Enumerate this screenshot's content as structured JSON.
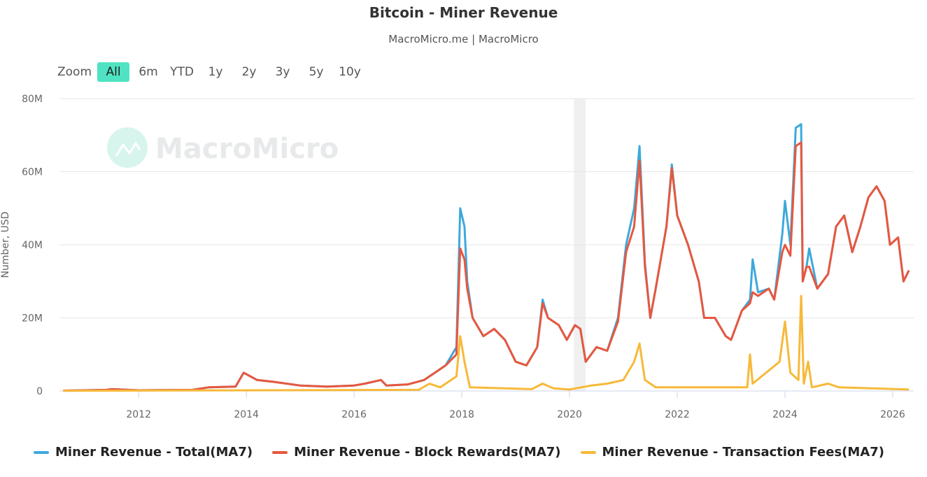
{
  "header": {
    "title": "Bitcoin - Miner Revenue",
    "subtitle": "MacroMicro.me | MacroMicro",
    "watermark": "MacroMicro"
  },
  "zoom": {
    "label": "Zoom",
    "buttons": [
      "All",
      "6m",
      "YTD",
      "1y",
      "2y",
      "3y",
      "5y",
      "10y"
    ],
    "active": "All"
  },
  "chart_data": {
    "type": "line",
    "title": "Bitcoin - Miner Revenue",
    "ylabel": "Number, USD",
    "xlabel": "",
    "xlim": [
      2010.53,
      2026.39
    ],
    "ylim": [
      0,
      80000000
    ],
    "yticks": [
      0,
      20000000,
      40000000,
      60000000,
      80000000
    ],
    "ytick_labels": [
      "0",
      "20M",
      "40M",
      "60M",
      "80M"
    ],
    "xticks": [
      2012,
      2014,
      2016,
      2018,
      2020,
      2022,
      2024,
      2026
    ],
    "xtick_labels": [
      "2012",
      "2014",
      "2016",
      "2018",
      "2020",
      "2022",
      "2024",
      "2026"
    ],
    "grid": true,
    "legend_position": "bottom",
    "shaded_band": [
      2020.08,
      2020.3
    ],
    "x": [
      2010.6,
      2011.4,
      2011.5,
      2012,
      2013,
      2013.3,
      2013.8,
      2013.95,
      2014.2,
      2014.5,
      2015,
      2015.5,
      2016,
      2016.2,
      2016.5,
      2016.6,
      2017,
      2017.3,
      2017.5,
      2017.7,
      2017.9,
      2017.97,
      2018.05,
      2018.1,
      2018.2,
      2018.4,
      2018.6,
      2018.8,
      2019,
      2019.2,
      2019.4,
      2019.5,
      2019.6,
      2019.8,
      2019.95,
      2020.1,
      2020.2,
      2020.3,
      2020.5,
      2020.7,
      2020.9,
      2021.05,
      2021.2,
      2021.3,
      2021.4,
      2021.5,
      2021.6,
      2021.8,
      2021.9,
      2022,
      2022.2,
      2022.4,
      2022.5,
      2022.7,
      2022.9,
      2023,
      2023.2,
      2023.35,
      2023.4,
      2023.5,
      2023.7,
      2023.8,
      2023.95,
      2024,
      2024.1,
      2024.2,
      2024.3,
      2024.33,
      2024.4,
      2024.45,
      2024.6,
      2024.8,
      2024.95,
      2025.1,
      2025.25,
      2025.4,
      2025.55,
      2025.7,
      2025.85,
      2025.95,
      2026.1,
      2026.2,
      2026.3
    ],
    "series": [
      {
        "name": "Miner Revenue - Total(MA7)",
        "color": "#3ca9dc",
        "unit": "M USD",
        "values": [
          0.1,
          0.3,
          0.5,
          0.2,
          0.3,
          1.0,
          1.2,
          5,
          3,
          2.5,
          1.5,
          1.2,
          1.5,
          2,
          3,
          1.5,
          1.8,
          3,
          5,
          7,
          12,
          50,
          45,
          30,
          20,
          15,
          17,
          14,
          8,
          7,
          12,
          25,
          20,
          18,
          14,
          18,
          17,
          8,
          12,
          11,
          20,
          40,
          50,
          67,
          35,
          20,
          28,
          45,
          62,
          48,
          40,
          30,
          20,
          20,
          15,
          14,
          22,
          25,
          36,
          27,
          28,
          25,
          43,
          52,
          40,
          72,
          73,
          30,
          34,
          39,
          28,
          32,
          45,
          48,
          38,
          45,
          53,
          56,
          52,
          40,
          42,
          30,
          33
        ]
      },
      {
        "name": "Miner Revenue - Block Rewards(MA7)",
        "color": "#e8573e",
        "unit": "M USD",
        "values": [
          0.1,
          0.3,
          0.5,
          0.2,
          0.3,
          1.0,
          1.2,
          5,
          3,
          2.5,
          1.5,
          1.2,
          1.5,
          2,
          3,
          1.5,
          1.8,
          3,
          5,
          7,
          10,
          39,
          36,
          28,
          20,
          15,
          17,
          14,
          8,
          7,
          12,
          24,
          20,
          18,
          14,
          18,
          17,
          8,
          12,
          11,
          19,
          38,
          45,
          63,
          34,
          20,
          28,
          45,
          61,
          48,
          40,
          30,
          20,
          20,
          15,
          14,
          22,
          24,
          27,
          26,
          28,
          25,
          38,
          40,
          37,
          67,
          68,
          30,
          34,
          34,
          28,
          32,
          45,
          48,
          38,
          45,
          53,
          56,
          52,
          40,
          42,
          30,
          33
        ]
      },
      {
        "name": "Miner Revenue - Transaction Fees(MA7)",
        "color": "#f7b93a",
        "unit": "M USD",
        "x": [
          2010.6,
          2017.2,
          2017.4,
          2017.6,
          2017.9,
          2017.97,
          2018.05,
          2018.15,
          2019.3,
          2019.5,
          2019.7,
          2020,
          2020.4,
          2020.7,
          2021.0,
          2021.2,
          2021.3,
          2021.4,
          2021.6,
          2023.3,
          2023.35,
          2023.4,
          2023.9,
          2024.0,
          2024.1,
          2024.25,
          2024.3,
          2024.35,
          2024.43,
          2024.5,
          2024.8,
          2025,
          2026.3
        ],
        "values": [
          0.05,
          0.3,
          2,
          1,
          4,
          15,
          8,
          1,
          0.5,
          2,
          0.7,
          0.4,
          1.5,
          2,
          3,
          8,
          13,
          3,
          1,
          1,
          10,
          2,
          8,
          19,
          5,
          3,
          26,
          2,
          8,
          1,
          2,
          1,
          0.4
        ]
      }
    ]
  }
}
